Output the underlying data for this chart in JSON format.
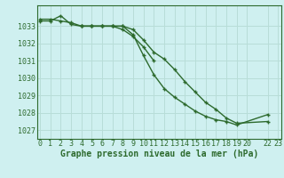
{
  "title": "Graphe pression niveau de la mer (hPa)",
  "background_color": "#cff0f0",
  "grid_color": "#b8ddd8",
  "line_color": "#2d6a2d",
  "xlim": [
    -0.3,
    23.3
  ],
  "ylim": [
    1026.5,
    1034.2
  ],
  "yticks": [
    1027,
    1028,
    1029,
    1030,
    1031,
    1032,
    1033
  ],
  "xtick_positions": [
    0,
    1,
    2,
    3,
    4,
    5,
    6,
    7,
    8,
    9,
    10,
    11,
    12,
    13,
    14,
    15,
    16,
    17,
    18,
    19,
    20,
    22,
    23
  ],
  "xtick_labels": [
    "0",
    "1",
    "2",
    "3",
    "4",
    "5",
    "6",
    "7",
    "8",
    "9",
    "10",
    "11",
    "12",
    "13",
    "14",
    "15",
    "16",
    "17",
    "18",
    "19",
    "20",
    "22",
    "23"
  ],
  "series": [
    [
      [
        0,
        1,
        2,
        3,
        4,
        5,
        6,
        7,
        8,
        9,
        10,
        11,
        12,
        13,
        14,
        15,
        16,
        17,
        18,
        19,
        22
      ],
      [
        1033.4,
        1033.4,
        1033.3,
        1033.2,
        1033.0,
        1033.0,
        1033.0,
        1033.0,
        1033.0,
        1032.8,
        1032.2,
        1031.5,
        1031.1,
        1030.5,
        1029.8,
        1029.2,
        1028.6,
        1028.2,
        1027.7,
        1027.4,
        1027.5
      ]
    ],
    [
      [
        0,
        1,
        2,
        3,
        4,
        5,
        6,
        7,
        8,
        9,
        10,
        11
      ],
      [
        1033.3,
        1033.3,
        1033.6,
        1033.1,
        1033.0,
        1033.0,
        1033.0,
        1033.0,
        1032.8,
        1032.4,
        1031.8,
        1031.0
      ]
    ],
    [
      [
        4,
        5,
        6,
        7,
        8,
        9,
        10,
        11,
        12,
        13,
        14,
        15,
        16,
        17,
        18,
        19,
        22
      ],
      [
        1033.0,
        1033.0,
        1033.0,
        1033.0,
        1033.0,
        1032.5,
        1031.3,
        1030.2,
        1029.4,
        1028.9,
        1028.5,
        1028.1,
        1027.8,
        1027.6,
        1027.5,
        1027.3,
        1027.9
      ]
    ]
  ],
  "tick_fontsize": 6,
  "label_fontsize": 7,
  "linewidth": 1.0,
  "markersize": 3.5
}
